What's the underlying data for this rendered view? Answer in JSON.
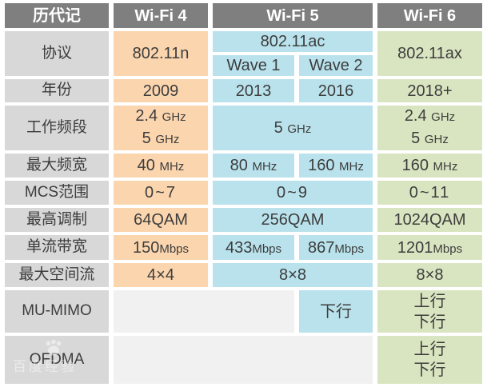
{
  "colors": {
    "page_bg": "#ffffff",
    "header_bg": "#7f7f7f",
    "header_text": "#ffffff",
    "label_bg": "#d8d8d8",
    "wifi4_bg": "#fbd5ae",
    "wifi5_bg": "#b9e2ec",
    "wifi6_bg": "#d9e5c0",
    "blank_bg": "#f1f1f1",
    "text": "#3d3d3d"
  },
  "watermark": {
    "text": "百度经验"
  },
  "table": {
    "header": {
      "history": "历代记",
      "wifi4": "Wi-Fi 4",
      "wifi5": "Wi-Fi 5",
      "wifi6": "Wi-Fi 6"
    },
    "protocol": {
      "label": "协议",
      "wifi4": "802.11n",
      "wifi5": "802.11ac",
      "wave1": "Wave 1",
      "wave2": "Wave 2",
      "wifi6": "802.11ax"
    },
    "year": {
      "label": "年份",
      "wifi4": "2009",
      "wave1": "2013",
      "wave2": "2016",
      "wifi6": "2018+"
    },
    "band": {
      "label": "工作频段",
      "wifi4_line1": "2.4 GHz",
      "wifi4_line2": "5 GHz",
      "wifi5": "5 GHz",
      "wifi6_line1": "2.4 GHz",
      "wifi6_line2": "5 GHz"
    },
    "bandwidth": {
      "label": "最大频宽",
      "wifi4": "40 MHz",
      "wave1": "80 MHz",
      "wave2": "160 MHz",
      "wifi6": "160 MHz"
    },
    "mcs": {
      "label": "MCS范围",
      "wifi4": "0~7",
      "wifi5": "0~9",
      "wifi6": "0~11"
    },
    "modulation": {
      "label": "最高调制",
      "wifi4": "64QAM",
      "wifi5": "256QAM",
      "wifi6": "1024QAM"
    },
    "stream_rate": {
      "label": "单流带宽",
      "wifi4": "150Mbps",
      "wave1": "433Mbps",
      "wave2": "867Mbps",
      "wifi6": "1201Mbps"
    },
    "spatial": {
      "label": "最大空间流",
      "wifi4": "4×4",
      "wifi5": "8×8",
      "wifi6": "8×8"
    },
    "mumimo": {
      "label": "MU-MIMO",
      "wave2": "下行",
      "wifi6_line1": "上行",
      "wifi6_line2": "下行"
    },
    "ofdma": {
      "label": "OFDMA",
      "wifi6_line1": "上行",
      "wifi6_line2": "下行"
    }
  },
  "chart_data": {
    "type": "table",
    "columns": [
      "历代记",
      "Wi-Fi 4",
      "Wi-Fi 5 (Wave 1)",
      "Wi-Fi 5 (Wave 2)",
      "Wi-Fi 6"
    ],
    "rows": [
      [
        "协议",
        "802.11n",
        "802.11ac / Wave 1",
        "802.11ac / Wave 2",
        "802.11ax"
      ],
      [
        "年份",
        "2009",
        "2013",
        "2016",
        "2018+"
      ],
      [
        "工作频段",
        "2.4 GHz / 5 GHz",
        "5 GHz",
        "5 GHz",
        "2.4 GHz / 5 GHz"
      ],
      [
        "最大频宽",
        "40 MHz",
        "80 MHz",
        "160 MHz",
        "160 MHz"
      ],
      [
        "MCS范围",
        "0~7",
        "0~9",
        "0~9",
        "0~11"
      ],
      [
        "最高调制",
        "64QAM",
        "256QAM",
        "256QAM",
        "1024QAM"
      ],
      [
        "单流带宽",
        "150Mbps",
        "433Mbps",
        "867Mbps",
        "1201Mbps"
      ],
      [
        "最大空间流",
        "4×4",
        "8×8",
        "8×8",
        "8×8"
      ],
      [
        "MU-MIMO",
        "",
        "",
        "下行",
        "上行 下行"
      ],
      [
        "OFDMA",
        "",
        "",
        "",
        "上行 下行"
      ]
    ],
    "legend_position": "none",
    "grid": "white cell gaps, no borders"
  }
}
